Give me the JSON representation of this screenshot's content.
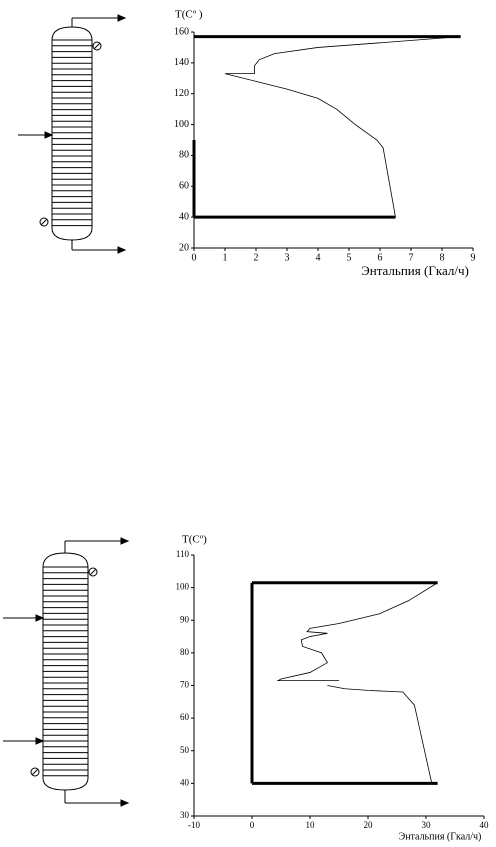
{
  "chart_data": [
    {
      "type": "line",
      "ylabel": "T(Cº )",
      "xlabel": "Энтальпия (Гкал/ч)",
      "xlim": [
        0,
        9
      ],
      "xticks": [
        0,
        1,
        2,
        3,
        4,
        5,
        6,
        7,
        8,
        9
      ],
      "ylim": [
        20,
        160
      ],
      "yticks": [
        20,
        40,
        60,
        80,
        100,
        120,
        140,
        160
      ],
      "series": [
        {
          "color": "#000000",
          "width": 3,
          "x": [
            0,
            8.6
          ],
          "values": [
            157,
            157
          ]
        },
        {
          "color": "#000000",
          "width": 3,
          "x": [
            0,
            6.5
          ],
          "values": [
            40,
            40
          ]
        },
        {
          "color": "#000000",
          "width": 3,
          "x": [
            0,
            0
          ],
          "values": [
            40,
            90
          ]
        },
        {
          "color": "#000000",
          "width": 0.8,
          "x": [
            8.6,
            6,
            4,
            2.6,
            2.1,
            1.95,
            1.95,
            1.0,
            2,
            3,
            4,
            4.6,
            5.2,
            5.9,
            6.1,
            6.5
          ],
          "values": [
            157,
            153,
            150,
            146,
            142,
            138,
            133,
            133,
            128,
            123,
            117,
            110,
            100,
            90,
            85,
            40
          ]
        }
      ]
    },
    {
      "type": "line",
      "ylabel": "T(Cº)",
      "xlabel": "Энтальпия (Гкал/ч)",
      "xlim": [
        -10,
        40
      ],
      "xticks": [
        -10,
        0,
        10,
        20,
        30,
        40
      ],
      "ylim": [
        30,
        110
      ],
      "yticks": [
        30,
        40,
        50,
        60,
        70,
        80,
        90,
        100,
        110
      ],
      "series": [
        {
          "color": "#000000",
          "width": 3,
          "x": [
            0,
            32
          ],
          "values": [
            101.5,
            101.5
          ]
        },
        {
          "color": "#000000",
          "width": 3,
          "x": [
            0,
            32
          ],
          "values": [
            40,
            40
          ]
        },
        {
          "color": "#000000",
          "width": 3,
          "x": [
            0,
            0
          ],
          "values": [
            40,
            101.5
          ]
        },
        {
          "color": "#000000",
          "width": 0.8,
          "x": [
            32,
            27,
            22,
            15,
            10,
            9.5,
            13,
            10,
            8.5,
            8.7,
            12,
            13,
            10,
            5,
            4.5,
            15
          ],
          "values": [
            101.5,
            96,
            92,
            89,
            87.5,
            86.5,
            86,
            85,
            84,
            82,
            80,
            77,
            74,
            72,
            71.5,
            71.5
          ]
        },
        {
          "color": "#000000",
          "width": 0.8,
          "x": [
            13,
            16,
            20,
            26,
            28,
            31
          ],
          "values": [
            70,
            69,
            68.5,
            68,
            64,
            40
          ]
        }
      ]
    }
  ]
}
